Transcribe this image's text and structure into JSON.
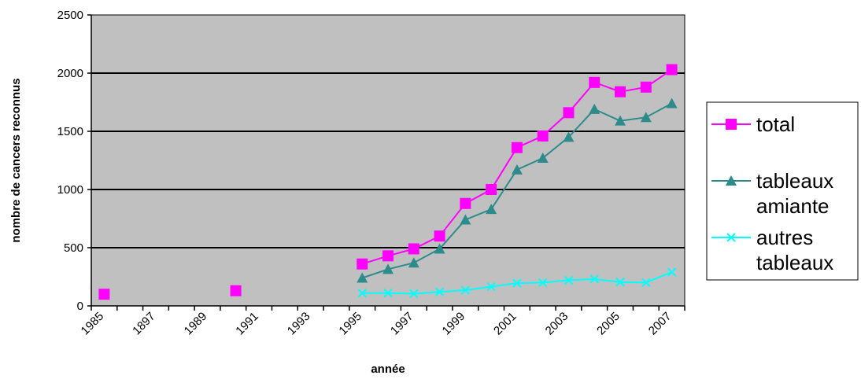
{
  "chart_data": {
    "type": "line",
    "title": "",
    "xlabel": "année",
    "ylabel": "nombre de cancers reconnus",
    "ylim": [
      0,
      2500
    ],
    "yticks": [
      "0",
      "500",
      "1000",
      "1500",
      "2000",
      "2500"
    ],
    "xticks": [
      "1985",
      "1897",
      "1989",
      "1991",
      "1993",
      "1995",
      "1997",
      "1999",
      "2001",
      "2003",
      "2005",
      "2007"
    ],
    "grid": true,
    "plot_background": "#c0c0c0",
    "legend_position": "right",
    "series": [
      {
        "name": "total",
        "color": "#ff00ff",
        "marker": "square",
        "x": [
          1985,
          1990,
          1995,
          1996,
          1997,
          1998,
          1999,
          2000,
          2001,
          2002,
          2003,
          2004,
          2005,
          2006,
          2007
        ],
        "y": [
          100,
          130,
          360,
          430,
          490,
          600,
          880,
          1000,
          1360,
          1460,
          1660,
          1920,
          1840,
          1880,
          2030
        ],
        "connected_from_index": 2
      },
      {
        "name": "tableaux amiante",
        "legend_lines": [
          "tableaux",
          "amiante"
        ],
        "color": "#2e8b8b",
        "marker": "triangle",
        "x": [
          1995,
          1996,
          1997,
          1998,
          1999,
          2000,
          2001,
          2002,
          2003,
          2004,
          2005,
          2006,
          2007
        ],
        "y": [
          240,
          315,
          370,
          490,
          740,
          830,
          1170,
          1270,
          1450,
          1690,
          1590,
          1620,
          1740
        ],
        "connected_from_index": 0
      },
      {
        "name": "autres tableaux",
        "legend_lines": [
          "autres",
          "tableaux"
        ],
        "color": "#00ffff",
        "marker": "x",
        "x": [
          1995,
          1996,
          1997,
          1998,
          1999,
          2000,
          2001,
          2002,
          2003,
          2004,
          2005,
          2006,
          2007
        ],
        "y": [
          110,
          110,
          105,
          120,
          135,
          165,
          195,
          200,
          220,
          230,
          205,
          200,
          290
        ],
        "connected_from_index": 0
      }
    ]
  }
}
